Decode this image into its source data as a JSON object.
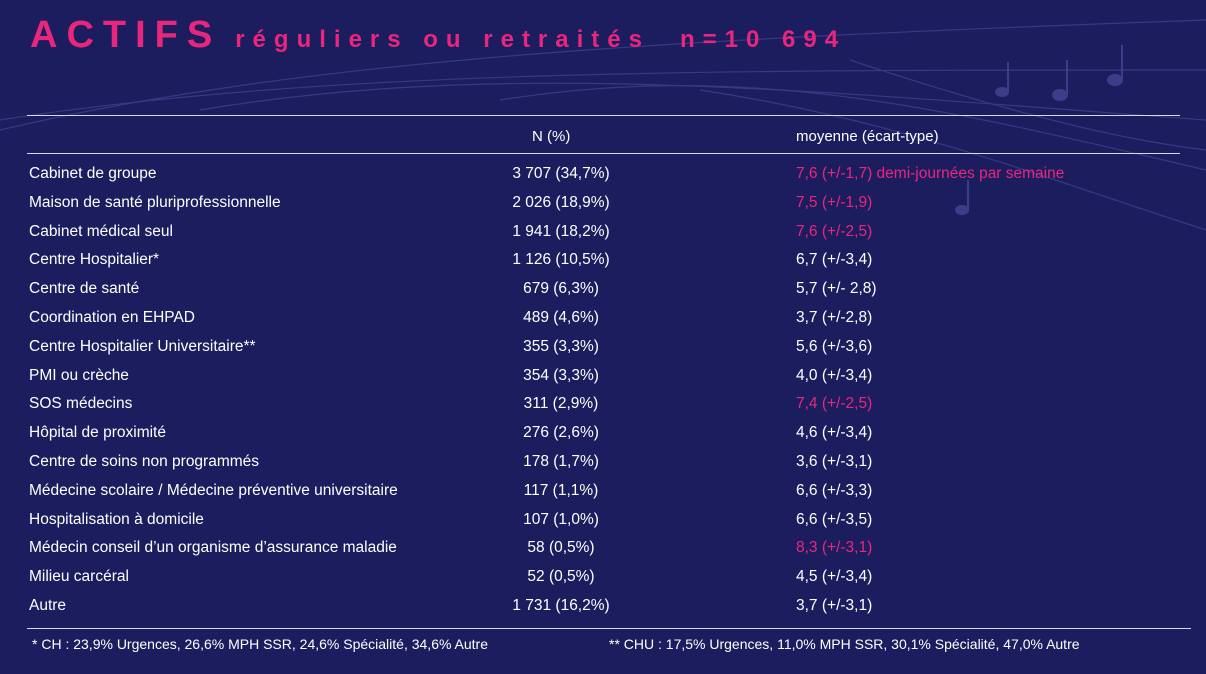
{
  "title": {
    "main": "ACTIFS",
    "sub": "réguliers ou retraités",
    "count": "n=10 694"
  },
  "headers": {
    "n": "N (%)",
    "mean": "moyenne (écart-type)"
  },
  "colors": {
    "accent": "#e8267c",
    "background": "#1c1d5e",
    "text": "#ffffff"
  },
  "rows": [
    {
      "label": "Cabinet de groupe",
      "n": "3 707 (34,7%)",
      "mean": "7,6 (+/-1,7) demi-journées par semaine",
      "highlight": true
    },
    {
      "label": "Maison de santé pluriprofessionnelle",
      "n": "2 026 (18,9%)",
      "mean": "7,5 (+/-1,9)",
      "highlight": true
    },
    {
      "label": "Cabinet médical seul",
      "n": "1 941 (18,2%)",
      "mean": "7,6 (+/-2,5)",
      "highlight": true
    },
    {
      "label": "Centre Hospitalier*",
      "n": "1  126 (10,5%)",
      "mean": "6,7 (+/-3,4)",
      "highlight": false
    },
    {
      "label": "Centre de santé",
      "n": "679 (6,3%)",
      "mean": "5,7 (+/- 2,8)",
      "highlight": false
    },
    {
      "label": "Coordination en EHPAD",
      "n": "489 (4,6%)",
      "mean": " 3,7 (+/-2,8)",
      "highlight": false
    },
    {
      "label": "Centre Hospitalier Universitaire**",
      "n": "355 (3,3%)",
      "mean": "5,6 (+/-3,6)",
      "highlight": false
    },
    {
      "label": "PMI ou crèche",
      "n": "354 (3,3%)",
      "mean": "4,0 (+/-3,4)",
      "highlight": false
    },
    {
      "label": "SOS médecins",
      "n": "311 (2,9%)",
      "mean": "7,4 (+/-2,5)",
      "highlight": true
    },
    {
      "label": "Hôpital de proximité",
      "n": "276 (2,6%)",
      "mean": "4,6 (+/-3,4)",
      "highlight": false
    },
    {
      "label": "Centre de soins non programmés",
      "n": "178 (1,7%)",
      "mean": "3,6 (+/-3,1)",
      "highlight": false
    },
    {
      "label": "Médecine scolaire / Médecine préventive universitaire",
      "n": "117 (1,1%)",
      "mean": "6,6 (+/-3,3)",
      "highlight": false
    },
    {
      "label": "Hospitalisation à domicile",
      "n": "107 (1,0%)",
      "mean": "6,6 (+/-3,5)",
      "highlight": false
    },
    {
      "label": "Médecin conseil d’un organisme d’assurance maladie",
      "n": "58 (0,5%)",
      "mean": "8,3 (+/-3,1)",
      "highlight": true
    },
    {
      "label": "Milieu carcéral",
      "n": "52 (0,5%)",
      "mean": "4,5 (+/-3,4)",
      "highlight": false
    },
    {
      "label": "Autre",
      "n": "1 731 (16,2%)",
      "mean": "3,7 (+/-3,1)",
      "highlight": false
    }
  ],
  "footnotes": {
    "ch": "* CH :   23,9% Urgences, 26,6% MPH SSR, 24,6% Spécialité, 34,6% Autre",
    "chu": "** CHU : 17,5% Urgences, 11,0% MPH SSR, 30,1% Spécialité, 47,0% Autre"
  }
}
